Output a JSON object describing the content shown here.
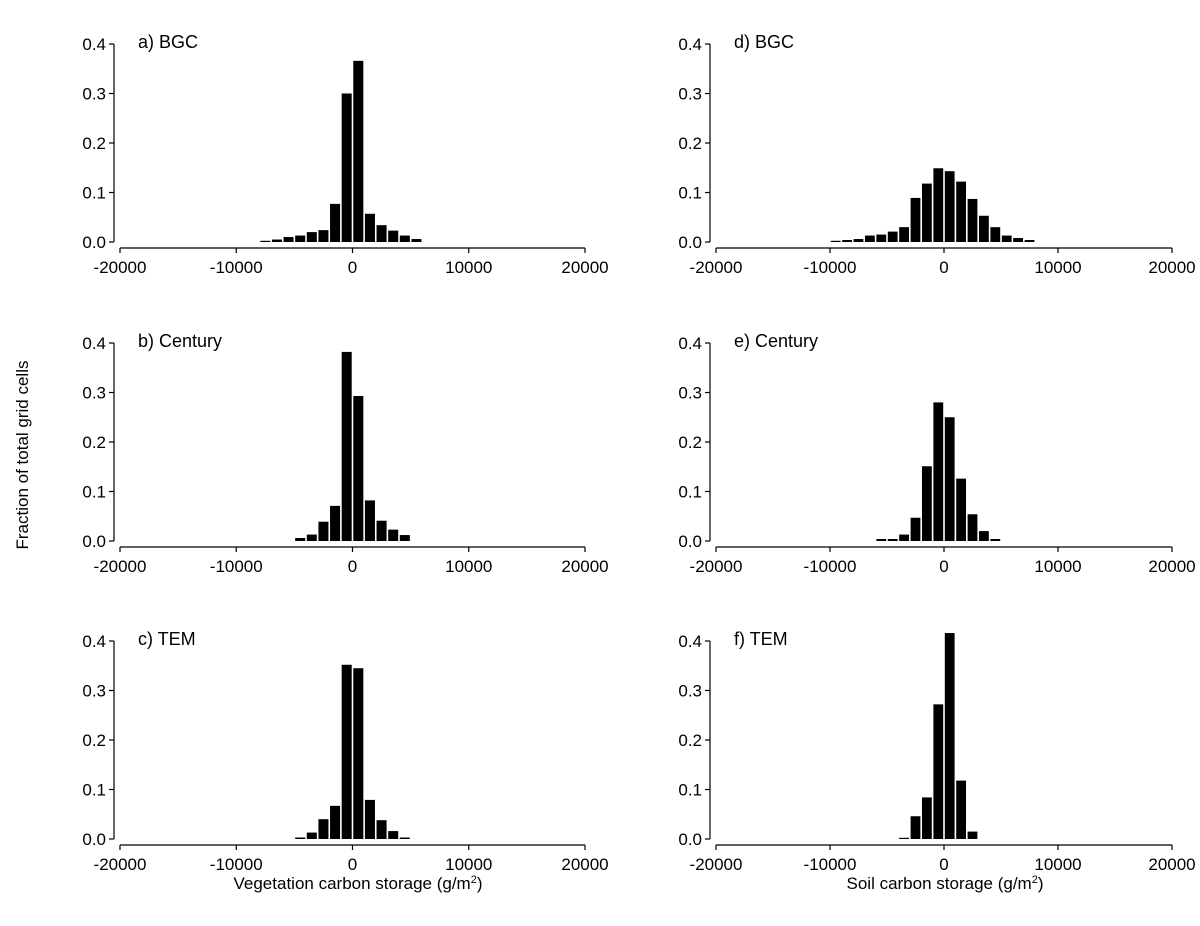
{
  "figure": {
    "ylabel": "Fraction of total grid cells",
    "xlabel_left": "Vegetation carbon storage (g/m",
    "xlabel_right": "Soil carbon storage (g/m",
    "xlabel_superscript": "2",
    "xlabel_close": ")"
  },
  "chart_data": [
    {
      "id": "a",
      "type": "bar",
      "title": "a) BGC",
      "xlim": [
        -20000,
        20000
      ],
      "ylim": [
        0,
        0.4
      ],
      "xticks": [
        -20000,
        -10000,
        0,
        10000,
        20000
      ],
      "yticks": [
        0.0,
        0.1,
        0.2,
        0.3,
        0.4
      ],
      "bin_width": 1000,
      "x": [
        -7500,
        -6500,
        -5500,
        -4500,
        -3500,
        -2500,
        -1500,
        -500,
        500,
        1500,
        2500,
        3500,
        4500,
        5500
      ],
      "values": [
        0.002,
        0.005,
        0.01,
        0.013,
        0.02,
        0.024,
        0.077,
        0.3,
        0.366,
        0.057,
        0.034,
        0.023,
        0.013,
        0.006
      ]
    },
    {
      "id": "d",
      "type": "bar",
      "title": "d) BGC",
      "xlim": [
        -20000,
        20000
      ],
      "ylim": [
        0,
        0.4
      ],
      "xticks": [
        -20000,
        -10000,
        0,
        10000,
        20000
      ],
      "yticks": [
        0.0,
        0.1,
        0.2,
        0.3,
        0.4
      ],
      "bin_width": 1000,
      "x": [
        -9500,
        -8500,
        -7500,
        -6500,
        -5500,
        -4500,
        -3500,
        -2500,
        -1500,
        -500,
        500,
        1500,
        2500,
        3500,
        4500,
        5500,
        6500,
        7500
      ],
      "values": [
        0.002,
        0.004,
        0.006,
        0.013,
        0.015,
        0.021,
        0.03,
        0.089,
        0.118,
        0.149,
        0.143,
        0.122,
        0.087,
        0.053,
        0.03,
        0.013,
        0.008,
        0.004
      ]
    },
    {
      "id": "b",
      "type": "bar",
      "title": "b) Century",
      "xlim": [
        -20000,
        20000
      ],
      "ylim": [
        0,
        0.4
      ],
      "xticks": [
        -20000,
        -10000,
        0,
        10000,
        20000
      ],
      "yticks": [
        0.0,
        0.1,
        0.2,
        0.3,
        0.4
      ],
      "bin_width": 1000,
      "x": [
        -4500,
        -3500,
        -2500,
        -1500,
        -500,
        500,
        1500,
        2500,
        3500,
        4500
      ],
      "values": [
        0.006,
        0.013,
        0.039,
        0.071,
        0.382,
        0.293,
        0.082,
        0.041,
        0.023,
        0.012
      ]
    },
    {
      "id": "e",
      "type": "bar",
      "title": "e) Century",
      "xlim": [
        -20000,
        20000
      ],
      "ylim": [
        0,
        0.4
      ],
      "xticks": [
        -20000,
        -10000,
        0,
        10000,
        20000
      ],
      "yticks": [
        0.0,
        0.1,
        0.2,
        0.3,
        0.4
      ],
      "bin_width": 1000,
      "x": [
        -5500,
        -4500,
        -3500,
        -2500,
        -1500,
        -500,
        500,
        1500,
        2500,
        3500,
        4500
      ],
      "values": [
        0.004,
        0.004,
        0.013,
        0.047,
        0.151,
        0.28,
        0.25,
        0.126,
        0.054,
        0.02,
        0.004
      ]
    },
    {
      "id": "c",
      "type": "bar",
      "title": "c) TEM",
      "xlim": [
        -20000,
        20000
      ],
      "ylim": [
        0,
        0.4
      ],
      "xticks": [
        -20000,
        -10000,
        0,
        10000,
        20000
      ],
      "yticks": [
        0.0,
        0.1,
        0.2,
        0.3,
        0.4
      ],
      "bin_width": 1000,
      "x": [
        -4500,
        -3500,
        -2500,
        -1500,
        -500,
        500,
        1500,
        2500,
        3500,
        4500
      ],
      "values": [
        0.003,
        0.013,
        0.04,
        0.067,
        0.352,
        0.345,
        0.079,
        0.038,
        0.016,
        0.003
      ]
    },
    {
      "id": "f",
      "type": "bar",
      "title": "f) TEM",
      "xlim": [
        -20000,
        20000
      ],
      "ylim": [
        0,
        0.4
      ],
      "xticks": [
        -20000,
        -10000,
        0,
        10000,
        20000
      ],
      "yticks": [
        0.0,
        0.1,
        0.2,
        0.3,
        0.4
      ],
      "bin_width": 1000,
      "x": [
        -3500,
        -2500,
        -1500,
        -500,
        500,
        1500,
        2500
      ],
      "values": [
        0.002,
        0.046,
        0.084,
        0.272,
        0.416,
        0.118,
        0.015
      ]
    }
  ]
}
